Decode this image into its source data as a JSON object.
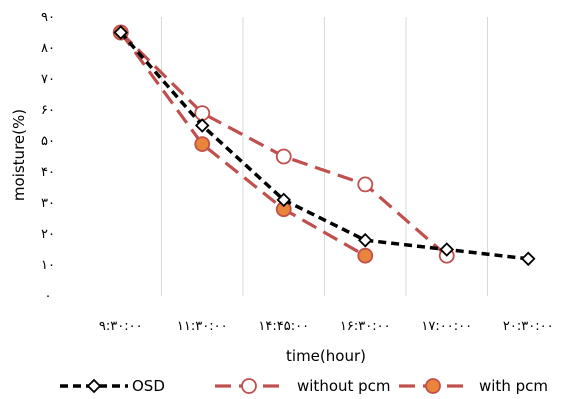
{
  "chart_data": {
    "type": "line",
    "categories": [
      "۹:۳۰:۰۰",
      "۱۱:۳۰:۰۰",
      "۱۴:۴۵:۰۰",
      "۱۶:۳۰:۰۰",
      "۱۷:۰۰:۰۰",
      "۲۰:۳۰:۰۰"
    ],
    "x": [
      0,
      1,
      2,
      3,
      4,
      5
    ],
    "xlabel": "time(hour)",
    "ylabel": "moisture(%)",
    "ylim": [
      0,
      90
    ],
    "yticks": [
      {
        "value": 0,
        "label": "۰"
      },
      {
        "value": 10,
        "label": "۱۰"
      },
      {
        "value": 20,
        "label": "۲۰"
      },
      {
        "value": 30,
        "label": "۳۰"
      },
      {
        "value": 40,
        "label": "۴۰"
      },
      {
        "value": 50,
        "label": "۵۰"
      },
      {
        "value": 60,
        "label": "۶۰"
      },
      {
        "value": 70,
        "label": "۷۰"
      },
      {
        "value": 80,
        "label": "۸۰"
      },
      {
        "value": 90,
        "label": "۹۰"
      }
    ],
    "grid": "vertical",
    "legend": "bottom",
    "series": [
      {
        "name": "OSD",
        "color": "#000000",
        "marker": "diamond",
        "points": [
          [
            0.5,
            85
          ],
          [
            1.5,
            55
          ],
          [
            2.5,
            31
          ],
          [
            3.5,
            18
          ],
          [
            4.5,
            15
          ],
          [
            5.5,
            12
          ]
        ]
      },
      {
        "name": "without pcm",
        "color": "#c0504d",
        "marker": "circle-open",
        "points": [
          [
            0.5,
            85
          ],
          [
            1.5,
            59
          ],
          [
            2.5,
            45
          ],
          [
            3.5,
            36
          ],
          [
            4.5,
            13
          ]
        ]
      },
      {
        "name": "with pcm",
        "color": "#c0504d",
        "marker": "circle-filled",
        "fill": "#e8853a",
        "points": [
          [
            0.5,
            85
          ],
          [
            1.5,
            49
          ],
          [
            2.5,
            28
          ],
          [
            3.5,
            13
          ]
        ]
      }
    ]
  }
}
